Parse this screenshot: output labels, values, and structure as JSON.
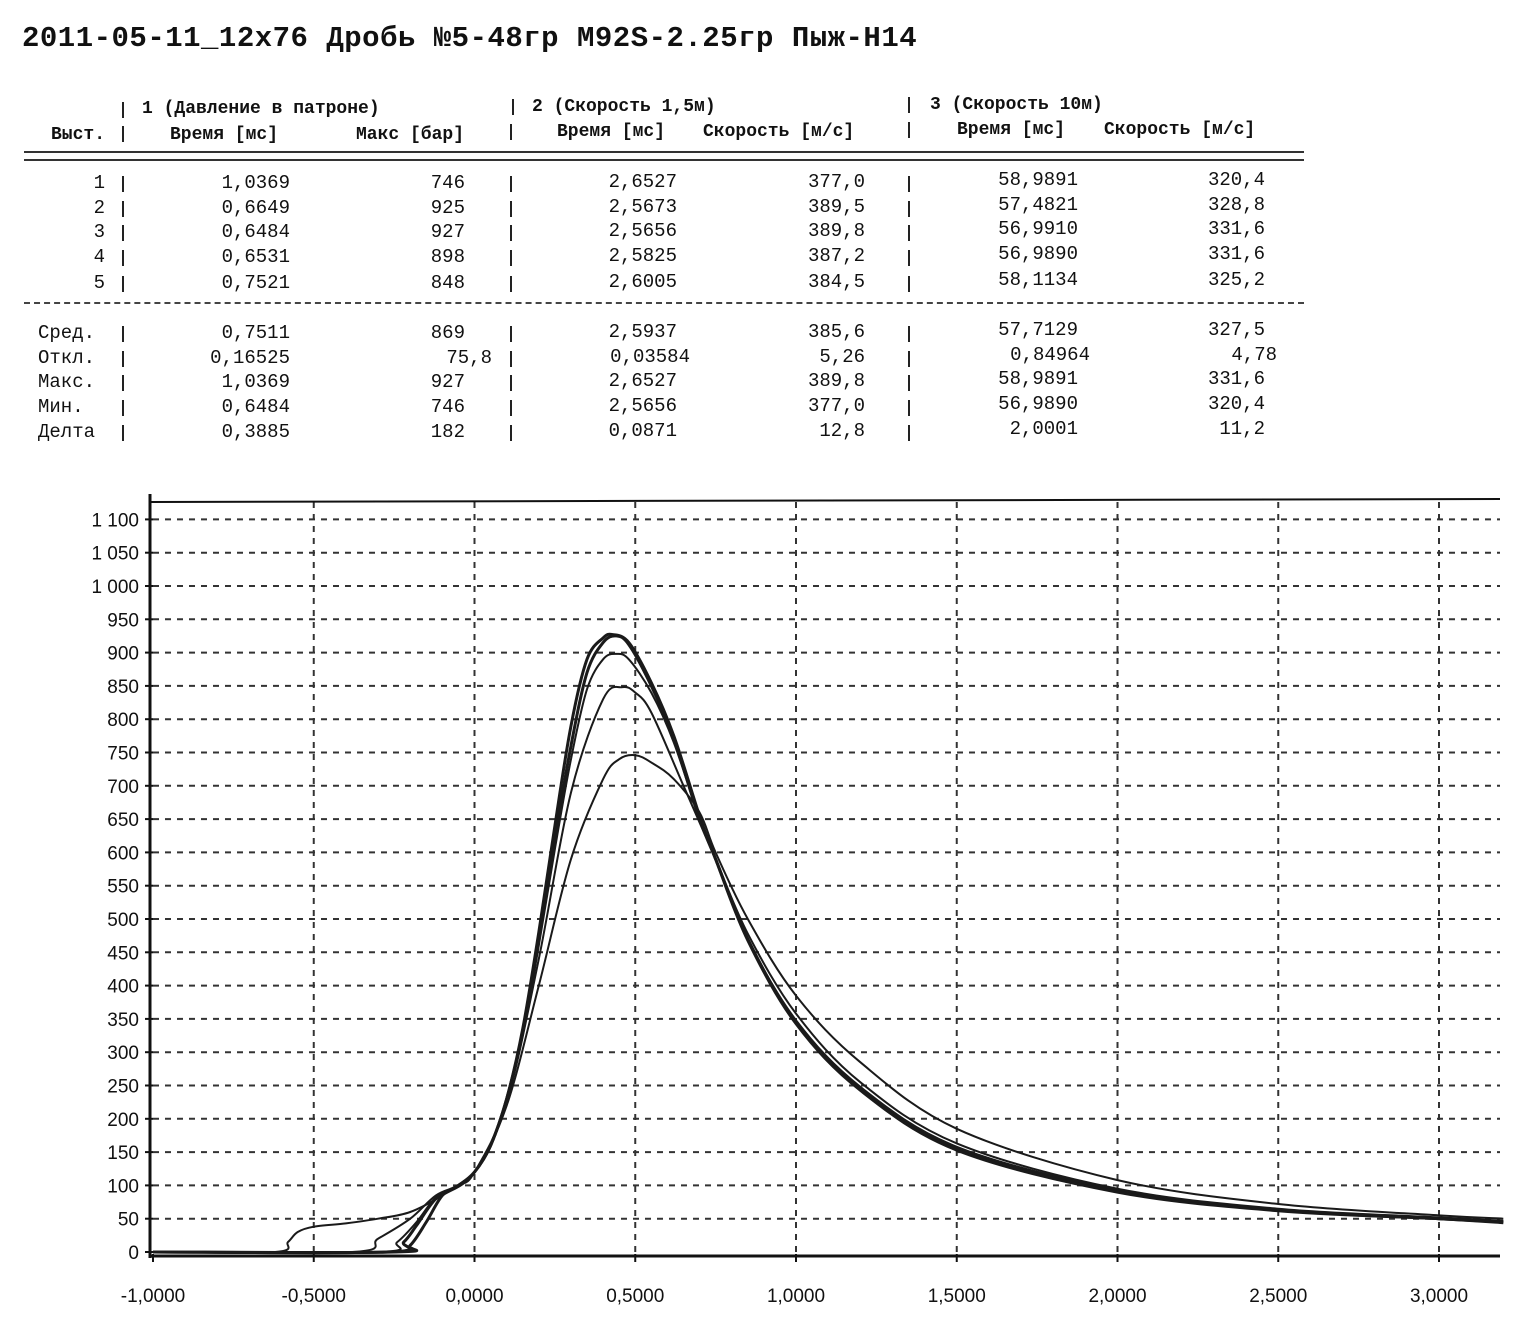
{
  "title": "2011-05-11_12x76 Дробь №5-48гр M92S-2.25гр Пыж-H14",
  "table": {
    "groups": [
      "1 (Давление в патроне)",
      "2 (Скорость 1,5м)",
      "3 (Скорость 10м)"
    ],
    "columns": [
      "Выст.",
      "Время [мс]",
      "Макс [бар]",
      "Время [мс]",
      "Скорость [м/с]",
      "Время [мс]",
      "Скорость [м/с]"
    ],
    "rows": [
      [
        "1",
        "1,0369",
        "746",
        "2,6527",
        "377,0",
        "58,9891",
        "320,4"
      ],
      [
        "2",
        "0,6649",
        "925",
        "2,5673",
        "389,5",
        "57,4821",
        "328,8"
      ],
      [
        "3",
        "0,6484",
        "927",
        "2,5656",
        "389,8",
        "56,9910",
        "331,6"
      ],
      [
        "4",
        "0,6531",
        "898",
        "2,5825",
        "387,2",
        "56,9890",
        "331,6"
      ],
      [
        "5",
        "0,7521",
        "848",
        "2,6005",
        "384,5",
        "58,1134",
        "325,2"
      ]
    ],
    "stats": [
      [
        "Сред.",
        "0,7511",
        "869",
        "2,5937",
        "385,6",
        "57,7129",
        "327,5"
      ],
      [
        "Откл.",
        "0,16525",
        "75,8",
        "0,03584",
        "5,26",
        "0,84964",
        "4,78"
      ],
      [
        "Макс.",
        "1,0369",
        "927",
        "2,6527",
        "389,8",
        "58,9891",
        "331,6"
      ],
      [
        "Мин.",
        "0,6484",
        "746",
        "2,5656",
        "377,0",
        "56,9890",
        "320,4"
      ],
      [
        "Делта",
        "0,3885",
        "182",
        "0,0871",
        "12,8",
        "2,0001",
        "11,2"
      ]
    ]
  },
  "chart_data": {
    "type": "line",
    "title": "",
    "xlabel": "",
    "ylabel": "",
    "xlim": [
      -1.0,
      3.2
    ],
    "ylim": [
      0,
      1100
    ],
    "grid": true,
    "xticks": [
      -1.0,
      -0.5,
      0.0,
      0.5,
      1.0,
      1.5,
      2.0,
      2.5,
      3.0
    ],
    "xtick_labels": [
      "-1,0000",
      "-0,5000",
      "0,0000",
      "0,5000",
      "1,0000",
      "1,5000",
      "2,0000",
      "2,5000",
      "3,0000"
    ],
    "yticks": [
      0,
      50,
      100,
      150,
      200,
      250,
      300,
      350,
      400,
      450,
      500,
      550,
      600,
      650,
      700,
      750,
      800,
      850,
      900,
      950,
      1000,
      1050,
      1100
    ],
    "ytick_labels": [
      "0",
      "50",
      "100",
      "150",
      "200",
      "250",
      "300",
      "350",
      "400",
      "450",
      "500",
      "550",
      "600",
      "650",
      "700",
      "750",
      "800",
      "850",
      "900",
      "950",
      "1 000",
      "1 050",
      "1 100"
    ],
    "series": [
      {
        "name": "1",
        "x": [
          -1.0,
          -0.62,
          -0.58,
          -0.55,
          -0.5,
          -0.4,
          -0.3,
          -0.2,
          -0.1,
          0.0,
          0.1,
          0.2,
          0.3,
          0.4,
          0.45,
          0.5,
          0.55,
          0.62,
          0.7,
          0.75,
          0.85,
          1.0,
          1.2,
          1.5,
          2.0,
          2.5,
          3.0,
          3.2
        ],
        "y": [
          0,
          0,
          15,
          30,
          38,
          43,
          50,
          60,
          85,
          120,
          220,
          400,
          590,
          710,
          740,
          746,
          735,
          710,
          660,
          600,
          500,
          385,
          285,
          185,
          108,
          72,
          55,
          50
        ]
      },
      {
        "name": "2",
        "x": [
          -1.0,
          -0.27,
          -0.22,
          -0.18,
          -0.12,
          -0.05,
          0.0,
          0.05,
          0.1,
          0.15,
          0.2,
          0.25,
          0.3,
          0.35,
          0.4,
          0.44,
          0.48,
          0.55,
          0.62,
          0.7,
          0.75,
          0.85,
          1.0,
          1.2,
          1.5,
          2.0,
          2.5,
          3.0,
          3.2
        ],
        "y": [
          0,
          0,
          15,
          40,
          80,
          100,
          120,
          160,
          230,
          330,
          470,
          620,
          760,
          870,
          915,
          925,
          912,
          850,
          770,
          650,
          590,
          470,
          345,
          245,
          155,
          92,
          63,
          50,
          45
        ]
      },
      {
        "name": "3",
        "x": [
          -1.0,
          -0.25,
          -0.2,
          -0.15,
          -0.1,
          -0.05,
          0.0,
          0.05,
          0.1,
          0.15,
          0.2,
          0.25,
          0.3,
          0.35,
          0.4,
          0.43,
          0.48,
          0.55,
          0.62,
          0.7,
          0.75,
          0.85,
          1.0,
          1.2,
          1.5,
          2.0,
          2.5,
          3.0,
          3.2
        ],
        "y": [
          0,
          0,
          10,
          45,
          85,
          100,
          120,
          160,
          230,
          335,
          480,
          640,
          790,
          890,
          922,
          927,
          915,
          855,
          775,
          655,
          590,
          468,
          343,
          243,
          153,
          90,
          62,
          50,
          44
        ]
      },
      {
        "name": "4",
        "x": [
          -1.0,
          -0.3,
          -0.24,
          -0.18,
          -0.12,
          -0.05,
          0.0,
          0.05,
          0.1,
          0.15,
          0.2,
          0.25,
          0.3,
          0.35,
          0.4,
          0.44,
          0.48,
          0.55,
          0.62,
          0.7,
          0.75,
          0.85,
          1.0,
          1.2,
          1.5,
          2.0,
          2.5,
          3.0,
          3.2
        ],
        "y": [
          0,
          0,
          15,
          45,
          82,
          100,
          120,
          158,
          228,
          325,
          460,
          605,
          740,
          845,
          890,
          898,
          890,
          840,
          765,
          650,
          590,
          470,
          348,
          248,
          158,
          94,
          64,
          51,
          46
        ]
      },
      {
        "name": "5",
        "x": [
          -1.0,
          -0.38,
          -0.3,
          -0.2,
          -0.12,
          -0.05,
          0.0,
          0.1,
          0.2,
          0.3,
          0.4,
          0.46,
          0.5,
          0.55,
          0.65,
          0.75,
          0.85,
          1.0,
          1.2,
          1.5,
          2.0,
          2.5,
          3.0,
          3.2
        ],
        "y": [
          0,
          0,
          20,
          50,
          85,
          100,
          120,
          225,
          440,
          690,
          830,
          848,
          840,
          810,
          700,
          590,
          478,
          358,
          255,
          163,
          95,
          65,
          52,
          47
        ]
      }
    ]
  }
}
